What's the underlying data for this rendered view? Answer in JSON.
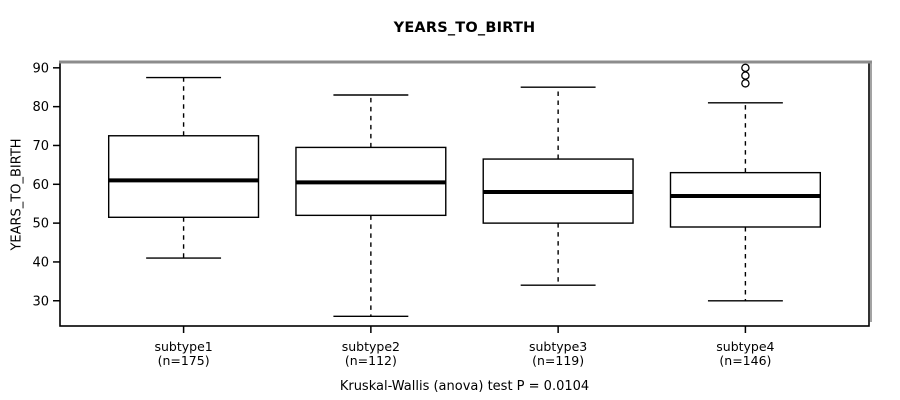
{
  "chart_data": {
    "type": "boxplot",
    "title": "YEARS_TO_BIRTH",
    "ylabel": "YEARS_TO_BIRTH",
    "caption": "Kruskal-Wallis (anova) test P = 0.0104",
    "yticks": [
      30,
      40,
      50,
      60,
      70,
      80,
      90
    ],
    "ylim": [
      23.5,
      91.5
    ],
    "grid": false,
    "legend": "none",
    "categories": [
      "subtype1",
      "subtype2",
      "subtype3",
      "subtype4"
    ],
    "group_counts": [
      "(n=175)",
      "(n=112)",
      "(n=119)",
      "(n=146)"
    ],
    "series": [
      {
        "name": "subtype1",
        "n": 175,
        "whisker_low": 41,
        "q1": 51.5,
        "median": 61,
        "q3": 72.5,
        "whisker_high": 87.5,
        "outliers": []
      },
      {
        "name": "subtype2",
        "n": 112,
        "whisker_low": 26,
        "q1": 52,
        "median": 60.5,
        "q3": 69.5,
        "whisker_high": 83,
        "outliers": []
      },
      {
        "name": "subtype3",
        "n": 119,
        "whisker_low": 34,
        "q1": 50,
        "median": 58,
        "q3": 66.5,
        "whisker_high": 85,
        "outliers": []
      },
      {
        "name": "subtype4",
        "n": 146,
        "whisker_low": 30,
        "q1": 49,
        "median": 57,
        "q3": 63,
        "whisker_high": 81,
        "outliers": [
          86,
          88,
          90
        ]
      }
    ],
    "colors": {
      "box_fill": "#ffffff",
      "box_stroke": "#000000",
      "median": "#000000",
      "whisker": "#000000",
      "outlier_stroke": "#000000",
      "frame": "#000000",
      "frame_shadow": "#8c8c8c",
      "text": "#000000",
      "background": "#ffffff"
    }
  }
}
